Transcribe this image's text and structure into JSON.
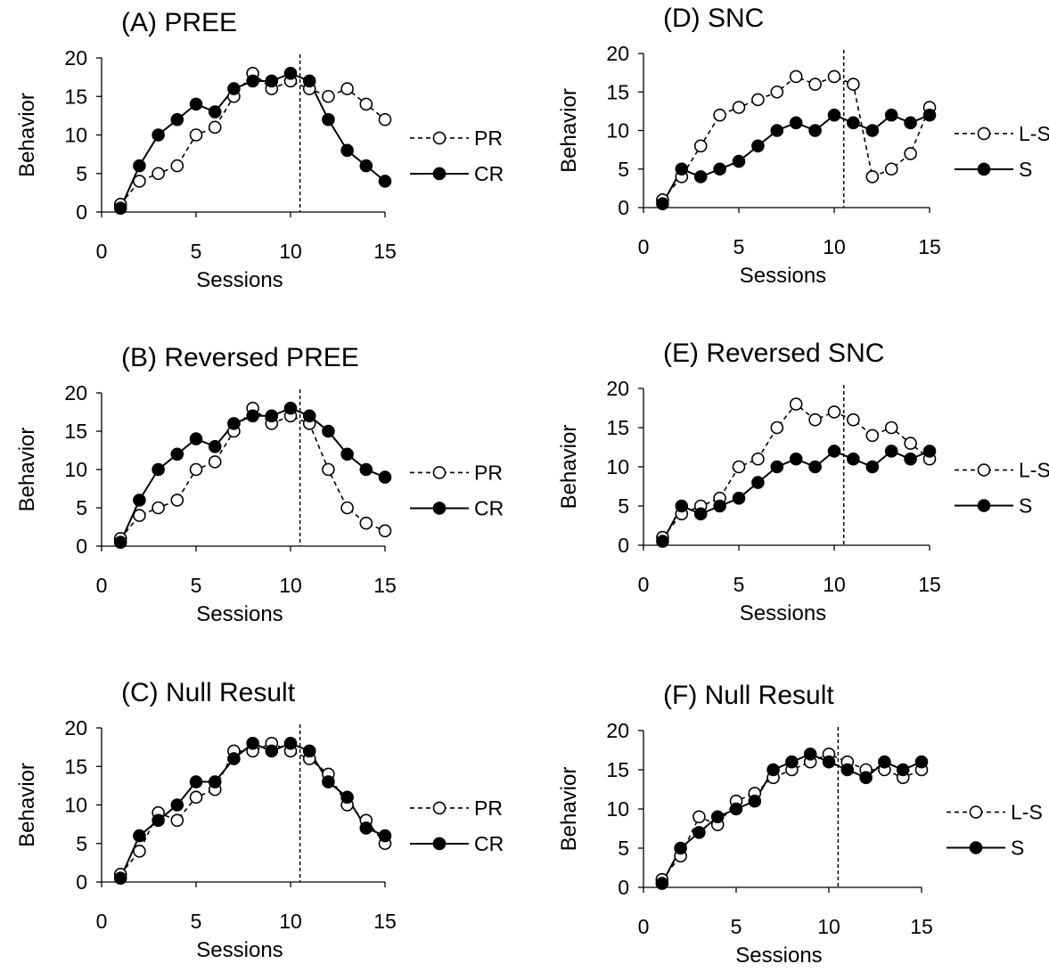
{
  "chart_data": [
    {
      "type": "line",
      "title": "(A) PREE",
      "xlabel": "Sessions",
      "ylabel": "Behavior",
      "xlim": [
        0,
        15
      ],
      "ylim": [
        0,
        20
      ],
      "xticks": [
        0,
        5,
        10,
        15
      ],
      "yticks": [
        0,
        5,
        10,
        15,
        20
      ],
      "phase_change_x": 10.5,
      "x": [
        1,
        2,
        3,
        4,
        5,
        6,
        7,
        8,
        9,
        10,
        11,
        12,
        13,
        14,
        15
      ],
      "series": [
        {
          "name": "PR",
          "style": "open-dashed",
          "values": [
            1,
            4,
            5,
            6,
            10,
            11,
            15,
            18,
            16,
            17,
            16,
            15,
            16,
            14,
            12
          ]
        },
        {
          "name": "CR",
          "style": "filled-solid",
          "values": [
            0.5,
            6,
            10,
            12,
            14,
            13,
            16,
            17,
            17,
            18,
            17,
            12,
            8,
            6,
            4
          ]
        }
      ]
    },
    {
      "type": "line",
      "title": "(B) Reversed PREE",
      "xlabel": "Sessions",
      "ylabel": "Behavior",
      "xlim": [
        0,
        15
      ],
      "ylim": [
        0,
        20
      ],
      "xticks": [
        0,
        5,
        10,
        15
      ],
      "yticks": [
        0,
        5,
        10,
        15,
        20
      ],
      "phase_change_x": 10.5,
      "x": [
        1,
        2,
        3,
        4,
        5,
        6,
        7,
        8,
        9,
        10,
        11,
        12,
        13,
        14,
        15
      ],
      "series": [
        {
          "name": "PR",
          "style": "open-dashed",
          "values": [
            1,
            4,
            5,
            6,
            10,
            11,
            15,
            18,
            16,
            17,
            16,
            10,
            5,
            3,
            2
          ]
        },
        {
          "name": "CR",
          "style": "filled-solid",
          "values": [
            0.5,
            6,
            10,
            12,
            14,
            13,
            16,
            17,
            17,
            18,
            17,
            15,
            12,
            10,
            9
          ]
        }
      ]
    },
    {
      "type": "line",
      "title": "(C) Null Result",
      "xlabel": "Sessions",
      "ylabel": "Behavior",
      "xlim": [
        0,
        15
      ],
      "ylim": [
        0,
        20
      ],
      "xticks": [
        0,
        5,
        10,
        15
      ],
      "yticks": [
        0,
        5,
        10,
        15,
        20
      ],
      "phase_change_x": 10.5,
      "x": [
        1,
        2,
        3,
        4,
        5,
        6,
        7,
        8,
        9,
        10,
        11,
        12,
        13,
        14,
        15
      ],
      "series": [
        {
          "name": "PR",
          "style": "open-dashed",
          "values": [
            1,
            4,
            9,
            8,
            11,
            12,
            17,
            17,
            18,
            17,
            16,
            14,
            10,
            8,
            5
          ]
        },
        {
          "name": "CR",
          "style": "filled-solid",
          "values": [
            0.5,
            6,
            8,
            10,
            13,
            13,
            16,
            18,
            17,
            18,
            17,
            13,
            11,
            7,
            6
          ]
        }
      ]
    },
    {
      "type": "line",
      "title": "(D) SNC",
      "xlabel": "Sessions",
      "ylabel": "Behavior",
      "xlim": [
        0,
        15
      ],
      "ylim": [
        0,
        20
      ],
      "xticks": [
        0,
        5,
        10,
        15
      ],
      "yticks": [
        0,
        5,
        10,
        15,
        20
      ],
      "phase_change_x": 10.5,
      "x": [
        1,
        2,
        3,
        4,
        5,
        6,
        7,
        8,
        9,
        10,
        11,
        12,
        13,
        14,
        15
      ],
      "series": [
        {
          "name": "L-S",
          "style": "open-dashed",
          "values": [
            1,
            4,
            8,
            12,
            13,
            14,
            15,
            17,
            16,
            17,
            16,
            4,
            5,
            7,
            13
          ]
        },
        {
          "name": "S",
          "style": "filled-solid",
          "values": [
            0.5,
            5,
            4,
            5,
            6,
            8,
            10,
            11,
            10,
            12,
            11,
            10,
            12,
            11,
            12
          ]
        }
      ]
    },
    {
      "type": "line",
      "title": "(E) Reversed SNC",
      "xlabel": "Sessions",
      "ylabel": "Behavior",
      "xlim": [
        0,
        15
      ],
      "ylim": [
        0,
        20
      ],
      "xticks": [
        0,
        5,
        10,
        15
      ],
      "yticks": [
        0,
        5,
        10,
        15,
        20
      ],
      "phase_change_x": 10.5,
      "x": [
        1,
        2,
        3,
        4,
        5,
        6,
        7,
        8,
        9,
        10,
        11,
        12,
        13,
        14,
        15
      ],
      "series": [
        {
          "name": "L-S",
          "style": "open-dashed",
          "values": [
            1,
            4,
            5,
            6,
            10,
            11,
            15,
            18,
            16,
            17,
            16,
            14,
            15,
            13,
            11
          ]
        },
        {
          "name": "S",
          "style": "filled-solid",
          "values": [
            0.5,
            5,
            4,
            5,
            6,
            8,
            10,
            11,
            10,
            12,
            11,
            10,
            12,
            11,
            12
          ]
        }
      ]
    },
    {
      "type": "line",
      "title": "(F) Null Result",
      "xlabel": "Sessions",
      "ylabel": "Behavior",
      "xlim": [
        0,
        15
      ],
      "ylim": [
        0,
        20
      ],
      "xticks": [
        0,
        5,
        10,
        15
      ],
      "yticks": [
        0,
        5,
        10,
        15,
        20
      ],
      "phase_change_x": 10.5,
      "x": [
        1,
        2,
        3,
        4,
        5,
        6,
        7,
        8,
        9,
        10,
        11,
        12,
        13,
        14,
        15
      ],
      "series": [
        {
          "name": "L-S",
          "style": "open-dashed",
          "values": [
            1,
            4,
            9,
            8,
            11,
            12,
            14,
            15,
            16,
            17,
            16,
            15,
            15,
            14,
            15
          ]
        },
        {
          "name": "S",
          "style": "filled-solid",
          "values": [
            0.5,
            5,
            7,
            9,
            10,
            11,
            15,
            16,
            17,
            16,
            15,
            14,
            16,
            15,
            16
          ]
        }
      ]
    }
  ]
}
